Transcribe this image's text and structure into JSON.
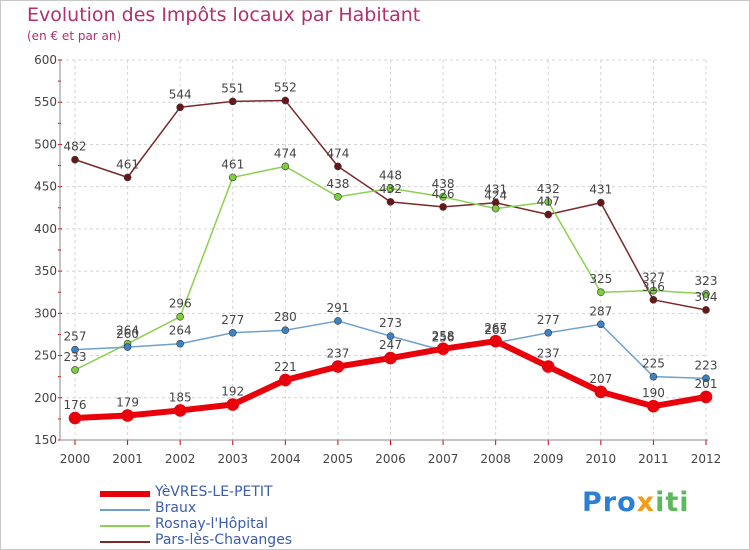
{
  "title": "Evolution des Impôts locaux par Habitant",
  "subtitle": "(en € et par an)",
  "logo": {
    "text_p": "Pro",
    "text_x": "x",
    "text_iti": "iti"
  },
  "chart_data": {
    "type": "line",
    "x": [
      "2000",
      "2001",
      "2002",
      "2003",
      "2004",
      "2005",
      "2006",
      "2007",
      "2008",
      "2009",
      "2010",
      "2011",
      "2012"
    ],
    "ylim": [
      150,
      600
    ],
    "yticks": [
      "150",
      "200",
      "250",
      "300",
      "350",
      "400",
      "450",
      "500",
      "550",
      "600"
    ],
    "grid": true,
    "series": [
      {
        "name": "YèVRES-LE-PETIT",
        "color": "#e8000b",
        "marker": "#e8000b",
        "width": 6,
        "values": [
          176,
          179,
          185,
          192,
          221,
          237,
          247,
          258,
          267,
          237,
          207,
          190,
          201
        ]
      },
      {
        "name": "Braux",
        "color": "#6fa0cf",
        "marker": "#3d82c4",
        "width": 1.5,
        "values": [
          257,
          260,
          264,
          277,
          280,
          291,
          273,
          256,
          265,
          277,
          287,
          225,
          223
        ]
      },
      {
        "name": "Rosnay-l'Hôpital",
        "color": "#8bd150",
        "marker": "#7ccf3a",
        "width": 1.5,
        "values": [
          233,
          264,
          296,
          461,
          474,
          438,
          448,
          438,
          424,
          432,
          325,
          327,
          323
        ]
      },
      {
        "name": "Pars-lès-Chavanges",
        "color": "#7a2a2a",
        "marker": "#6b1616",
        "width": 1.5,
        "values": [
          482,
          461,
          544,
          551,
          552,
          474,
          432,
          426,
          431,
          417,
          431,
          316,
          304
        ]
      }
    ]
  }
}
